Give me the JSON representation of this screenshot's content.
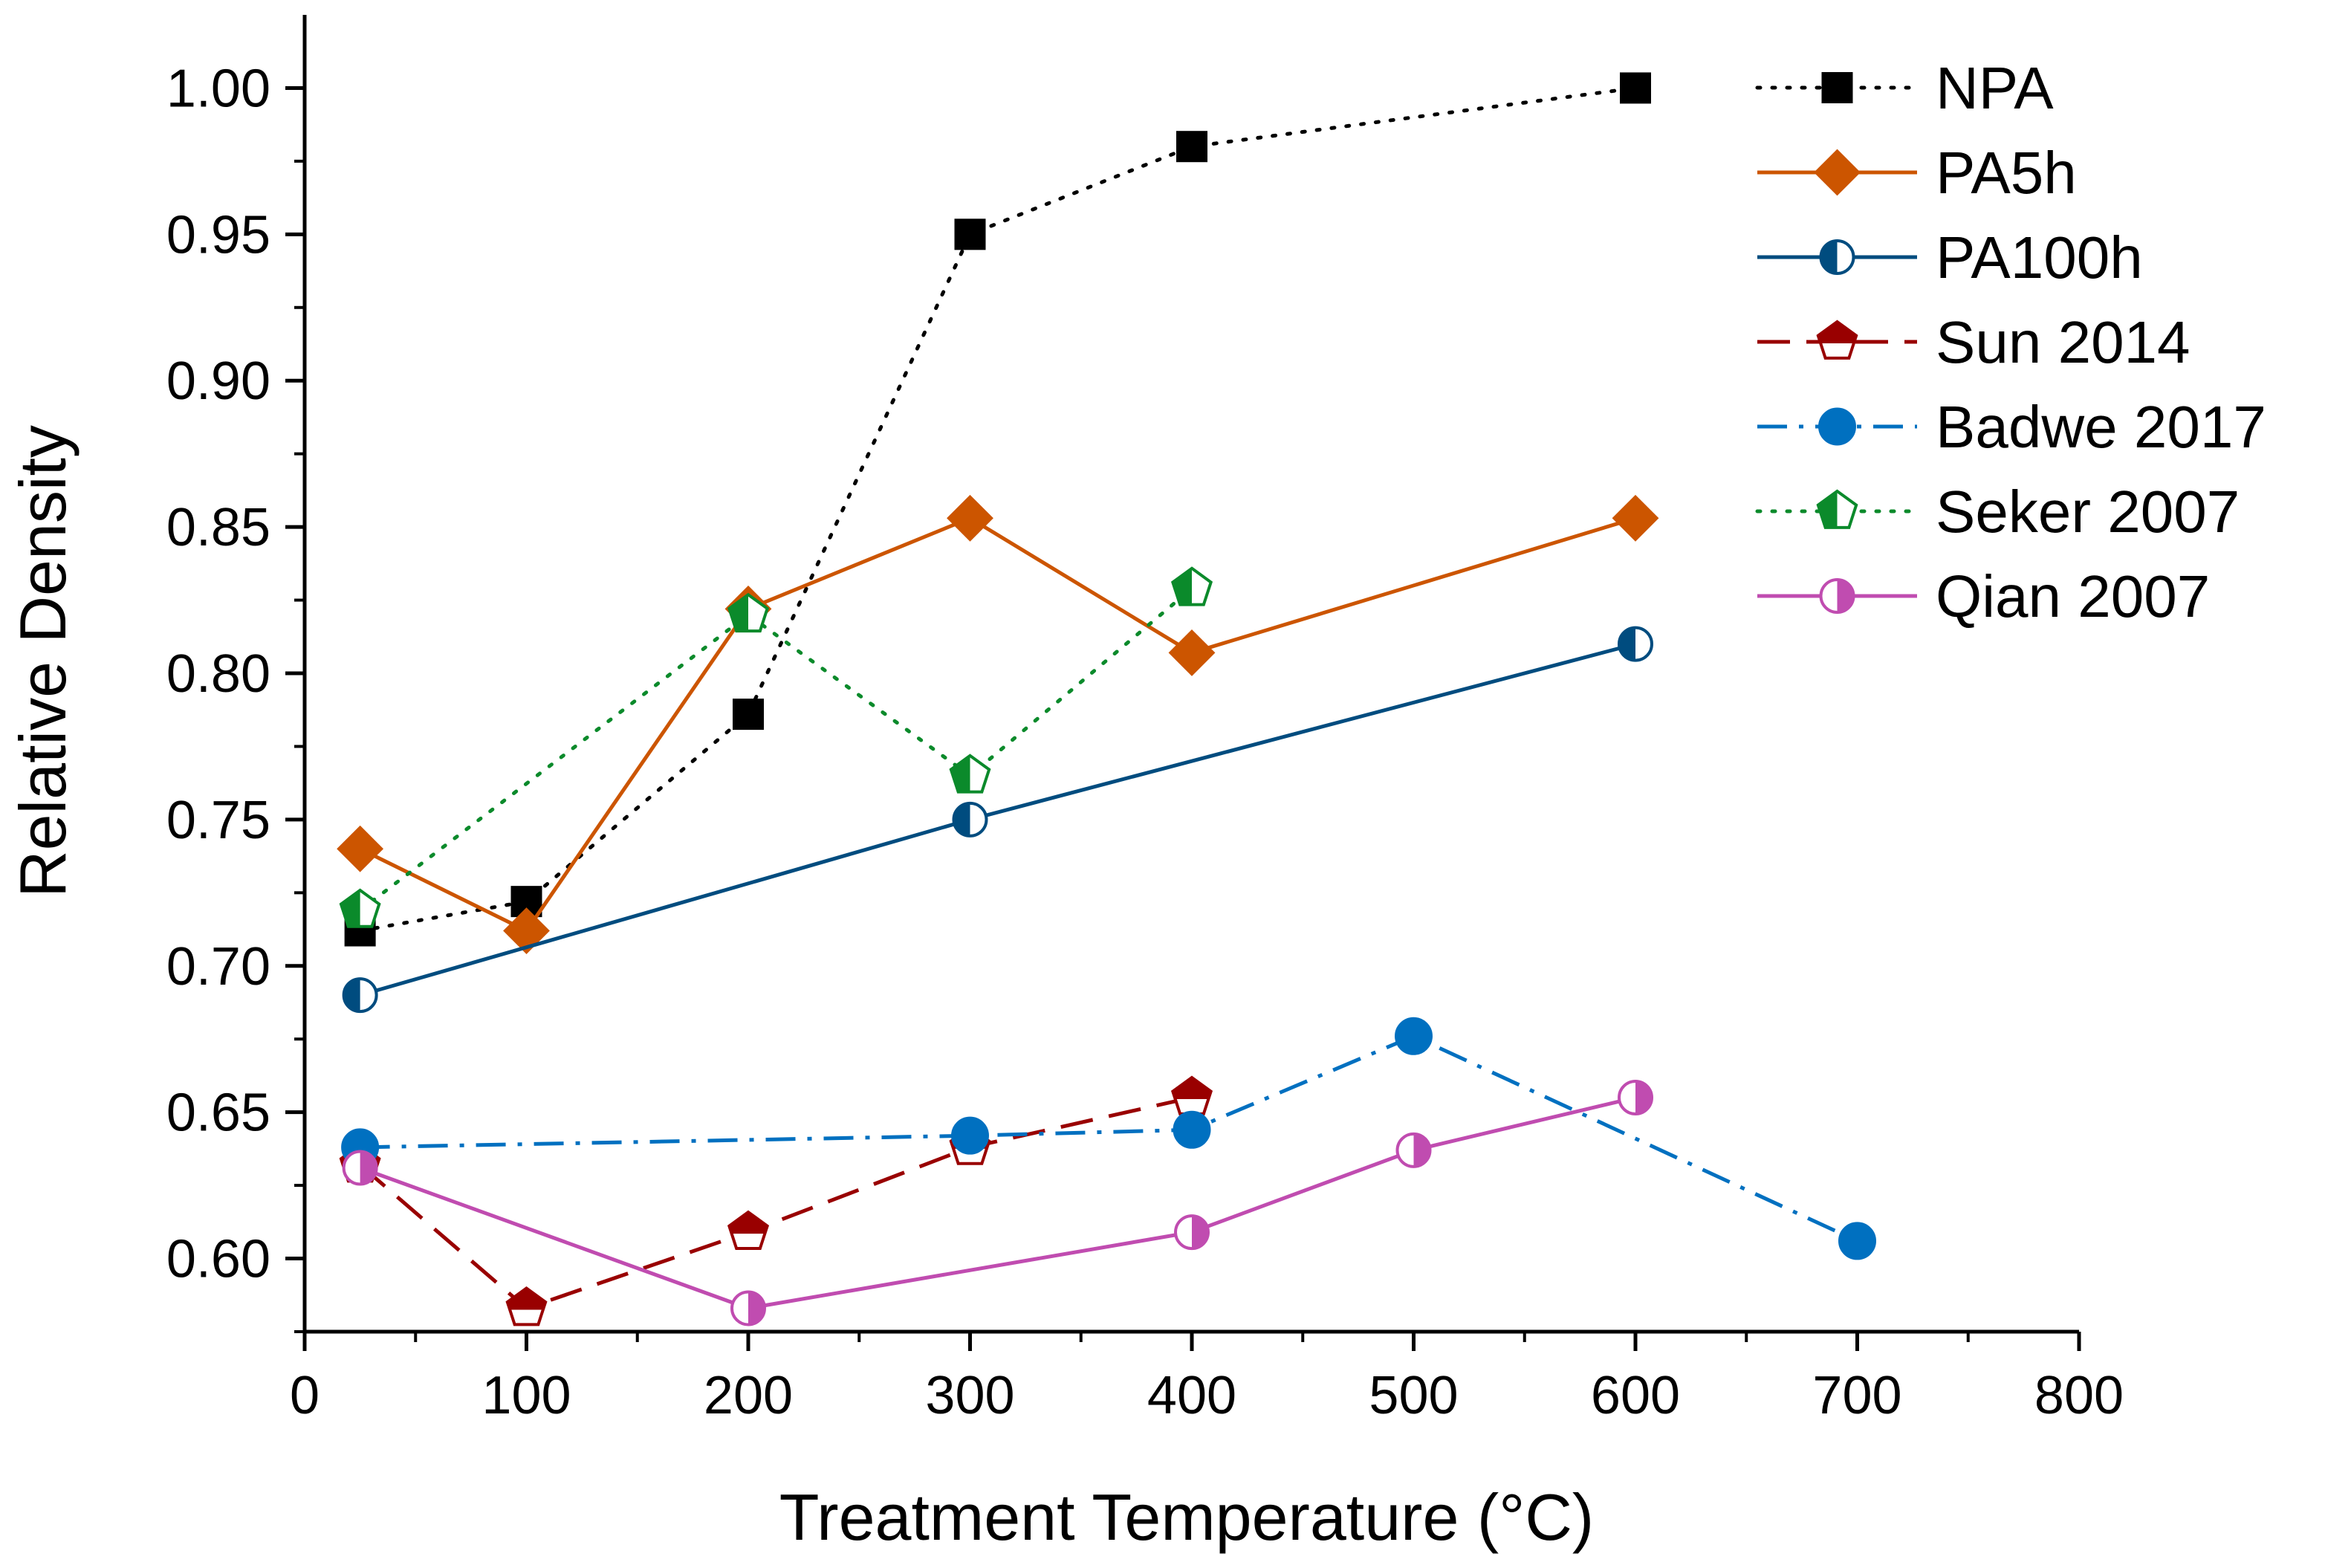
{
  "chart_data": {
    "type": "line",
    "title": "",
    "xlabel": "Treatment Temperature (°C)",
    "ylabel": "Relative Density",
    "xlim": [
      0,
      800
    ],
    "ylim": [
      0.575,
      1.025
    ],
    "x_ticks": [
      0,
      100,
      200,
      300,
      400,
      500,
      600,
      700,
      800
    ],
    "x_tick_labels": [
      "0",
      "100",
      "200",
      "300",
      "400",
      "500",
      "600",
      "700",
      "800"
    ],
    "y_ticks": [
      0.6,
      0.65,
      0.7,
      0.75,
      0.8,
      0.85,
      0.9,
      0.95,
      1.0
    ],
    "y_tick_labels": [
      "0.60",
      "0.65",
      "0.70",
      "0.75",
      "0.80",
      "0.85",
      "0.90",
      "0.95",
      "1.00"
    ],
    "grid": false,
    "legend_position": "top-right",
    "series": [
      {
        "name": "NPA",
        "color": "#000000",
        "line_style": "dotted",
        "marker": "square-filled",
        "x": [
          25,
          100,
          200,
          300,
          400,
          600
        ],
        "y": [
          0.712,
          0.722,
          0.786,
          0.95,
          0.98,
          1.0
        ]
      },
      {
        "name": "PA5h",
        "color": "#CC5500",
        "line_style": "solid",
        "marker": "diamond-filled",
        "x": [
          25,
          100,
          200,
          300,
          400,
          600
        ],
        "y": [
          0.74,
          0.712,
          0.822,
          0.853,
          0.807,
          0.853
        ]
      },
      {
        "name": "PA100h",
        "color": "#004C7F",
        "line_style": "solid",
        "marker": "circle-half-left",
        "x": [
          25,
          300,
          600
        ],
        "y": [
          0.69,
          0.75,
          0.81
        ]
      },
      {
        "name": "Sun 2014",
        "color": "#990000",
        "line_style": "dashed",
        "marker": "pentagon-half-top",
        "x": [
          25,
          100,
          200,
          300,
          400
        ],
        "y": [
          0.632,
          0.583,
          0.609,
          0.638,
          0.655
        ]
      },
      {
        "name": "Badwe 2017",
        "color": "#0070C0",
        "line_style": "dash-dot",
        "marker": "circle-filled",
        "x": [
          25,
          300,
          400,
          500,
          700
        ],
        "y": [
          0.638,
          0.642,
          0.644,
          0.676,
          0.606
        ]
      },
      {
        "name": "Seker 2007",
        "color": "#0B8A2B",
        "line_style": "dotted",
        "marker": "pentagon-half-left",
        "x": [
          25,
          200,
          300,
          400
        ],
        "y": [
          0.719,
          0.82,
          0.765,
          0.829
        ]
      },
      {
        "name": "Qian 2007",
        "color": "#C04CB0",
        "line_style": "solid",
        "marker": "circle-half-right",
        "x": [
          25,
          200,
          400,
          500,
          600
        ],
        "y": [
          0.631,
          0.583,
          0.609,
          0.637,
          0.655
        ]
      }
    ]
  }
}
